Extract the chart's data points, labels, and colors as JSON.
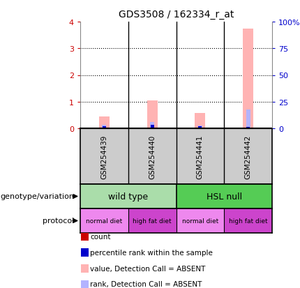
{
  "title": "GDS3508 / 162334_r_at",
  "samples": [
    "GSM254439",
    "GSM254440",
    "GSM254441",
    "GSM254442"
  ],
  "value_bars": [
    0.45,
    1.05,
    0.58,
    3.75
  ],
  "rank_bars": [
    0.13,
    0.24,
    0.11,
    0.7
  ],
  "count_vals": [
    0.05,
    0.05,
    0.05,
    0.05
  ],
  "rank_marker_vals": [
    0.09,
    0.14,
    0.08,
    0.04
  ],
  "left_ylim": [
    0,
    4
  ],
  "right_ylim": [
    0,
    100
  ],
  "left_yticks": [
    0,
    1,
    2,
    3,
    4
  ],
  "right_yticks": [
    0,
    25,
    50,
    75,
    100
  ],
  "right_yticklabels": [
    "0",
    "25",
    "50",
    "75",
    "100%"
  ],
  "value_bar_color": "#ffb3b3",
  "rank_bar_color": "#b3b3ff",
  "count_color": "#cc0000",
  "rank_color": "#0000cc",
  "genotype_color_light": "#aaddaa",
  "genotype_color_dark": "#55cc55",
  "protocol_color_light": "#ee88ee",
  "protocol_color_dark": "#cc44cc",
  "bg_color": "#cccccc",
  "left_tick_color": "#cc0000",
  "right_tick_color": "#0000cc",
  "legend_items": [
    {
      "label": "count",
      "color": "#cc0000"
    },
    {
      "label": "percentile rank within the sample",
      "color": "#0000cc"
    },
    {
      "label": "value, Detection Call = ABSENT",
      "color": "#ffb3b3"
    },
    {
      "label": "rank, Detection Call = ABSENT",
      "color": "#b3b3ff"
    }
  ]
}
